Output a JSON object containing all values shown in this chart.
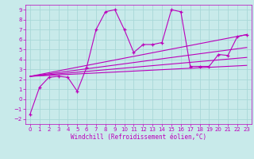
{
  "xlabel": "Windchill (Refroidissement éolien,°C)",
  "bg_color": "#c8eaea",
  "grid_color": "#a8d8d8",
  "line_color": "#bb00bb",
  "xlim": [
    -0.5,
    23.5
  ],
  "ylim": [
    -2.5,
    9.5
  ],
  "xticks": [
    0,
    1,
    2,
    3,
    4,
    5,
    6,
    7,
    8,
    9,
    10,
    11,
    12,
    13,
    14,
    15,
    16,
    17,
    18,
    19,
    20,
    21,
    22,
    23
  ],
  "yticks": [
    -2,
    -1,
    0,
    1,
    2,
    3,
    4,
    5,
    6,
    7,
    8,
    9
  ],
  "main_x": [
    0,
    1,
    2,
    3,
    4,
    5,
    6,
    7,
    8,
    9,
    10,
    11,
    12,
    13,
    14,
    15,
    16,
    17,
    18,
    19,
    20,
    21,
    22,
    23
  ],
  "main_y": [
    -1.5,
    1.2,
    2.2,
    2.3,
    2.2,
    0.8,
    3.2,
    7.0,
    8.8,
    9.0,
    7.0,
    4.7,
    5.5,
    5.5,
    5.7,
    9.0,
    8.8,
    3.3,
    3.3,
    3.3,
    4.5,
    4.4,
    6.3,
    6.5
  ],
  "reg_lines": [
    {
      "x": [
        0,
        23
      ],
      "y": [
        2.3,
        3.4
      ]
    },
    {
      "x": [
        0,
        23
      ],
      "y": [
        2.3,
        4.2
      ]
    },
    {
      "x": [
        0,
        23
      ],
      "y": [
        2.3,
        5.2
      ]
    },
    {
      "x": [
        0,
        23
      ],
      "y": [
        2.3,
        6.5
      ]
    }
  ],
  "tick_fontsize": 5,
  "xlabel_fontsize": 5.5
}
